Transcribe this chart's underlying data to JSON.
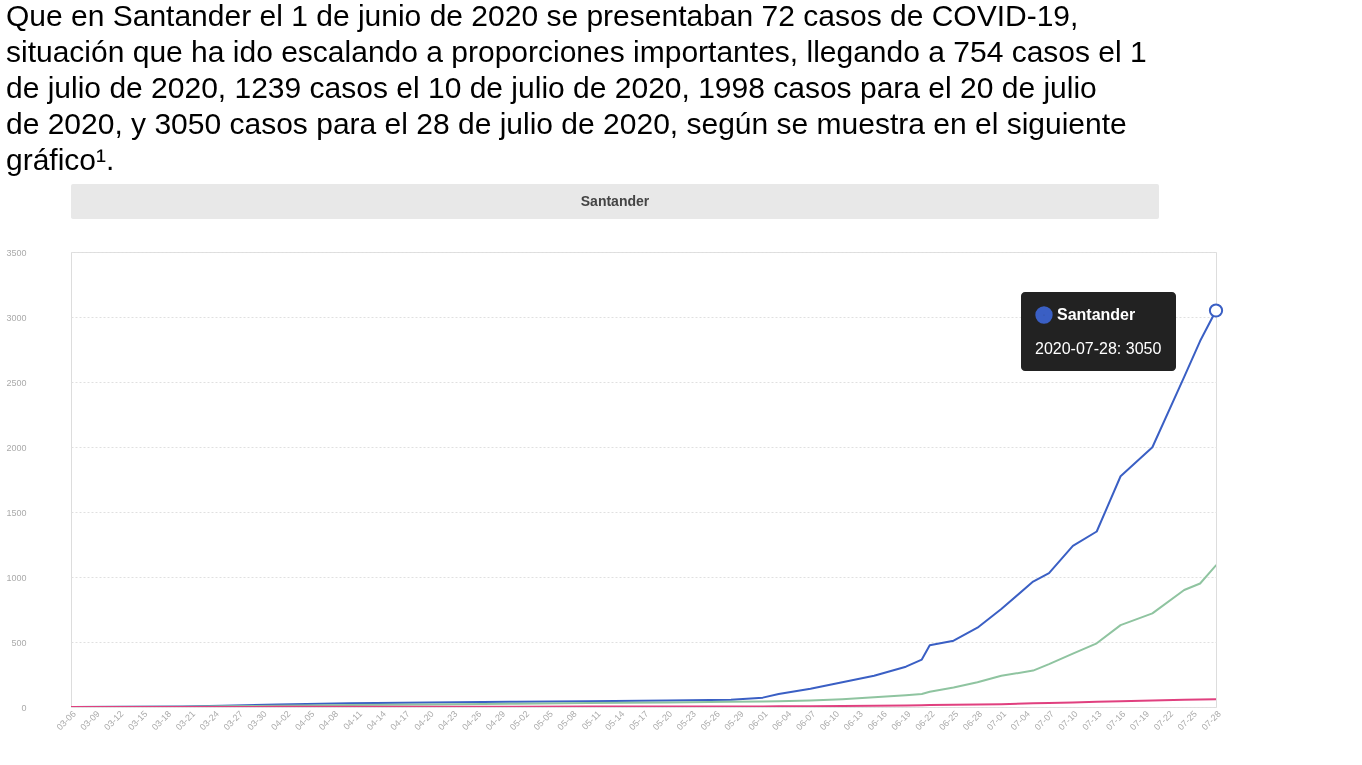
{
  "chart_data": {
    "type": "line",
    "title": "Que en Santander el 1 de junio de 2020 se presentaban 72 casos de COVID-19, situación que ha ido escalando a proporciones importantes, llegando a 754 casos el 1 de julio de 2020, 1239 casos el 10 de julio de 2020, 1998 casos para el 20 de julio de 2020, y 3050 casos para el 28 de julio de 2020, según se muestra en el siguiente gráfico¹.",
    "subtitle": "Santander",
    "x": [
      "2020-03-06",
      "2020-03-20",
      "2020-03-25",
      "2020-04-01",
      "2020-04-10",
      "2020-04-20",
      "2020-05-01",
      "2020-05-10",
      "2020-05-20",
      "2020-05-28",
      "2020-06-01",
      "2020-06-03",
      "2020-06-07",
      "2020-06-11",
      "2020-06-15",
      "2020-06-19",
      "2020-06-21",
      "2020-06-22",
      "2020-06-25",
      "2020-06-28",
      "2020-07-01",
      "2020-07-05",
      "2020-07-07",
      "2020-07-10",
      "2020-07-13",
      "2020-07-16",
      "2020-07-20",
      "2020-07-24",
      "2020-07-26",
      "2020-07-28"
    ],
    "series": [
      {
        "name": "Santander",
        "color": "#3a5fc4",
        "values": [
          0,
          3,
          10,
          20,
          28,
          35,
          40,
          45,
          50,
          55,
          72,
          100,
          140,
          190,
          240,
          310,
          365,
          475,
          510,
          610,
          754,
          965,
          1030,
          1239,
          1350,
          1775,
          1998,
          2540,
          2815,
          3050
        ]
      },
      {
        "color": "#8fc4a0",
        "values": [
          0,
          2,
          5,
          10,
          15,
          20,
          25,
          30,
          35,
          40,
          42,
          45,
          50,
          60,
          75,
          90,
          100,
          117,
          150,
          190,
          240,
          280,
          330,
          410,
          490,
          630,
          720,
          900,
          950,
          1090
        ]
      },
      {
        "color": "#e0407f",
        "values": [
          0,
          0,
          0,
          1,
          1,
          2,
          2,
          3,
          3,
          4,
          4,
          5,
          6,
          8,
          10,
          12,
          14,
          15,
          17,
          20,
          22,
          28,
          30,
          35,
          40,
          45,
          50,
          55,
          58,
          60
        ]
      }
    ],
    "ylim": [
      0,
      3500
    ],
    "yticks": [
      0,
      500,
      1000,
      1500,
      2000,
      2500,
      3000,
      3500
    ],
    "xlim": [
      "2020-03-06",
      "2020-07-28"
    ],
    "xticks": [
      {
        "value": "2020-03-06",
        "label": "03-06"
      },
      {
        "value": "2020-03-09",
        "label": "03-09"
      },
      {
        "value": "2020-03-12",
        "label": "03-12"
      },
      {
        "value": "2020-03-15",
        "label": "03-15"
      },
      {
        "value": "2020-03-18",
        "label": "03-18"
      },
      {
        "value": "2020-03-21",
        "label": "03-21"
      },
      {
        "value": "2020-03-24",
        "label": "03-24"
      },
      {
        "value": "2020-03-27",
        "label": "03-27"
      },
      {
        "value": "2020-03-30",
        "label": "03-30"
      },
      {
        "value": "2020-04-02",
        "label": "04-02"
      },
      {
        "value": "2020-04-05",
        "label": "04-05"
      },
      {
        "value": "2020-04-08",
        "label": "04-08"
      },
      {
        "value": "2020-04-11",
        "label": "04-11"
      },
      {
        "value": "2020-04-14",
        "label": "04-14"
      },
      {
        "value": "2020-04-17",
        "label": "04-17"
      },
      {
        "value": "2020-04-20",
        "label": "04-20"
      },
      {
        "value": "2020-04-23",
        "label": "04-23"
      },
      {
        "value": "2020-04-26",
        "label": "04-26"
      },
      {
        "value": "2020-04-29",
        "label": "04-29"
      },
      {
        "value": "2020-05-02",
        "label": "05-02"
      },
      {
        "value": "2020-05-05",
        "label": "05-05"
      },
      {
        "value": "2020-05-08",
        "label": "05-08"
      },
      {
        "value": "2020-05-11",
        "label": "05-11"
      },
      {
        "value": "2020-05-14",
        "label": "05-14"
      },
      {
        "value": "2020-05-17",
        "label": "05-17"
      },
      {
        "value": "2020-05-20",
        "label": "05-20"
      },
      {
        "value": "2020-05-23",
        "label": "05-23"
      },
      {
        "value": "2020-05-26",
        "label": "05-26"
      },
      {
        "value": "2020-05-29",
        "label": "05-29"
      },
      {
        "value": "2020-06-01",
        "label": "06-01"
      },
      {
        "value": "2020-06-04",
        "label": "06-04"
      },
      {
        "value": "2020-06-07",
        "label": "06-07"
      },
      {
        "value": "2020-06-10",
        "label": "06-10"
      },
      {
        "value": "2020-06-13",
        "label": "06-13"
      },
      {
        "value": "2020-06-16",
        "label": "06-16"
      },
      {
        "value": "2020-06-19",
        "label": "06-19"
      },
      {
        "value": "2020-06-22",
        "label": "06-22"
      },
      {
        "value": "2020-06-25",
        "label": "06-25"
      },
      {
        "value": "2020-06-28",
        "label": "06-28"
      },
      {
        "value": "2020-07-01",
        "label": "07-01"
      },
      {
        "value": "2020-07-04",
        "label": "07-04"
      },
      {
        "value": "2020-07-07",
        "label": "07-07"
      },
      {
        "value": "2020-07-10",
        "label": "07-10"
      },
      {
        "value": "2020-07-13",
        "label": "07-13"
      },
      {
        "value": "2020-07-16",
        "label": "07-16"
      },
      {
        "value": "2020-07-19",
        "label": "07-19"
      },
      {
        "value": "2020-07-22",
        "label": "07-22"
      },
      {
        "value": "2020-07-25",
        "label": "07-25"
      },
      {
        "value": "2020-07-28",
        "label": "07-28"
      }
    ],
    "grid": "y",
    "legend": "top right",
    "line_style": "solid",
    "annotations": [
      "2020-07-28: 3050"
    ]
  }
}
